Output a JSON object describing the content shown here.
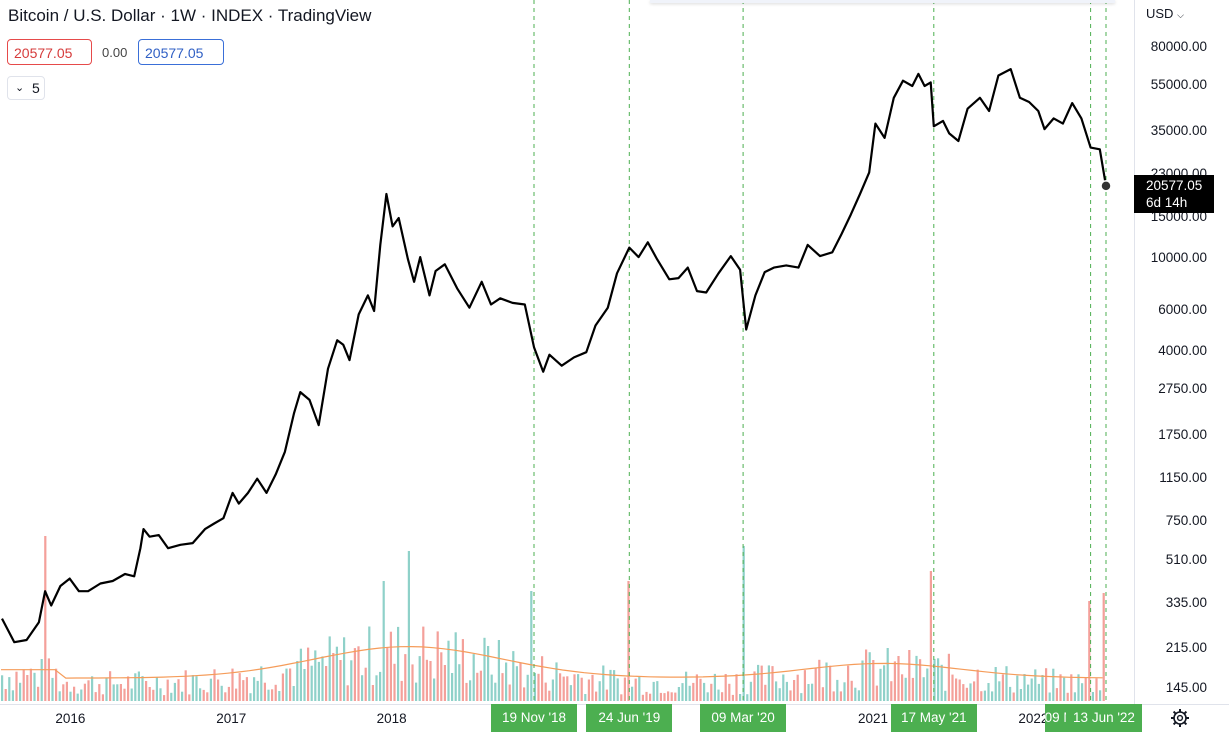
{
  "header": {
    "title": "Bitcoin / U.S. Dollar · 1W · INDEX · TradingView",
    "last_price": "20577.05",
    "change": "0.00",
    "price_blue": "20577.05",
    "indicators_count": "5"
  },
  "price_axis": {
    "currency": "USD",
    "current_price": "20577.05",
    "countdown": "6d 14h"
  },
  "colors": {
    "price_line": "#000000",
    "volume_up": "#8fd1c9",
    "volume_down": "#f4a09a",
    "volume_ma": "#f59c5a",
    "marker_line": "#4caf50",
    "marker_label_bg": "#4caf50"
  },
  "chart_data": {
    "type": "line",
    "title": "Bitcoin / U.S. Dollar · 1W · INDEX · TradingView",
    "y_scale": "log",
    "ylim": [
      140,
      95000
    ],
    "y_ticks": [
      {
        "value": 80000,
        "label": "80000.00"
      },
      {
        "value": 55000,
        "label": "55000.00"
      },
      {
        "value": 35000,
        "label": "35000.00"
      },
      {
        "value": 23000,
        "label": "23000.00"
      },
      {
        "value": 15000,
        "label": "15000.00"
      },
      {
        "value": 10000,
        "label": "10000.00"
      },
      {
        "value": 6000,
        "label": "6000.00"
      },
      {
        "value": 4000,
        "label": "4000.00"
      },
      {
        "value": 2750,
        "label": "2750.00"
      },
      {
        "value": 1750,
        "label": "1750.00"
      },
      {
        "value": 1150,
        "label": "1150.00"
      },
      {
        "value": 750,
        "label": "750.00"
      },
      {
        "value": 510,
        "label": "510.00"
      },
      {
        "value": 335,
        "label": "335.00"
      },
      {
        "value": 215,
        "label": "215.00"
      },
      {
        "value": 145,
        "label": "145.00"
      }
    ],
    "x_ticks": [
      "2016",
      "2017",
      "2018",
      "2021",
      "2022"
    ],
    "x_tick_dates": [
      "2016-01-01",
      "2017-01-01",
      "2018-01-01",
      "2021-01-01",
      "2022-01-01"
    ],
    "xlim": [
      "2015-07-27",
      "2022-06-13"
    ],
    "markers": [
      {
        "date": "2018-11-19",
        "label": "19 Nov '18"
      },
      {
        "date": "2019-06-24",
        "label": "24 Jun '19"
      },
      {
        "date": "2020-03-09",
        "label": "09 Mar '20"
      },
      {
        "date": "2021-05-17",
        "label": "17 May '21"
      },
      {
        "date": "2022-05-09",
        "label": "09 May '22"
      },
      {
        "date": "2022-06-13",
        "label": "13 Jun '22"
      }
    ],
    "series": [
      {
        "points": [
          [
            "2015-07-27",
            290
          ],
          [
            "2015-08-24",
            230
          ],
          [
            "2015-09-21",
            235
          ],
          [
            "2015-10-19",
            280
          ],
          [
            "2015-11-02",
            380
          ],
          [
            "2015-11-16",
            330
          ],
          [
            "2015-12-07",
            400
          ],
          [
            "2015-12-28",
            430
          ],
          [
            "2016-01-18",
            380
          ],
          [
            "2016-02-08",
            380
          ],
          [
            "2016-03-07",
            410
          ],
          [
            "2016-04-04",
            420
          ],
          [
            "2016-05-02",
            450
          ],
          [
            "2016-05-23",
            440
          ],
          [
            "2016-06-06",
            580
          ],
          [
            "2016-06-13",
            700
          ],
          [
            "2016-06-27",
            650
          ],
          [
            "2016-07-18",
            660
          ],
          [
            "2016-08-08",
            580
          ],
          [
            "2016-09-05",
            600
          ],
          [
            "2016-10-03",
            610
          ],
          [
            "2016-10-31",
            700
          ],
          [
            "2016-11-21",
            740
          ],
          [
            "2016-12-12",
            780
          ],
          [
            "2017-01-02",
            1000
          ],
          [
            "2017-01-16",
            900
          ],
          [
            "2017-02-06",
            1000
          ],
          [
            "2017-02-27",
            1150
          ],
          [
            "2017-03-20",
            1000
          ],
          [
            "2017-04-10",
            1200
          ],
          [
            "2017-05-01",
            1500
          ],
          [
            "2017-05-22",
            2200
          ],
          [
            "2017-06-05",
            2700
          ],
          [
            "2017-06-26",
            2500
          ],
          [
            "2017-07-17",
            1950
          ],
          [
            "2017-08-07",
            3400
          ],
          [
            "2017-08-28",
            4500
          ],
          [
            "2017-09-11",
            4300
          ],
          [
            "2017-09-25",
            3700
          ],
          [
            "2017-10-16",
            5800
          ],
          [
            "2017-11-06",
            7000
          ],
          [
            "2017-11-20",
            6000
          ],
          [
            "2017-12-04",
            11500
          ],
          [
            "2017-12-18",
            19000
          ],
          [
            "2018-01-01",
            13800
          ],
          [
            "2018-01-15",
            15000
          ],
          [
            "2018-02-05",
            10000
          ],
          [
            "2018-02-19",
            8000
          ],
          [
            "2018-03-05",
            10200
          ],
          [
            "2018-03-26",
            7000
          ],
          [
            "2018-04-09",
            8900
          ],
          [
            "2018-04-30",
            9500
          ],
          [
            "2018-05-28",
            7500
          ],
          [
            "2018-06-25",
            6200
          ],
          [
            "2018-07-23",
            8000
          ],
          [
            "2018-08-13",
            6400
          ],
          [
            "2018-09-03",
            6800
          ],
          [
            "2018-10-01",
            6500
          ],
          [
            "2018-10-29",
            6400
          ],
          [
            "2018-11-19",
            4200
          ],
          [
            "2018-12-10",
            3300
          ],
          [
            "2018-12-24",
            3900
          ],
          [
            "2019-01-21",
            3500
          ],
          [
            "2019-02-18",
            3800
          ],
          [
            "2019-03-18",
            4000
          ],
          [
            "2019-04-08",
            5200
          ],
          [
            "2019-05-06",
            6200
          ],
          [
            "2019-05-27",
            8700
          ],
          [
            "2019-06-24",
            11200
          ],
          [
            "2019-07-15",
            10200
          ],
          [
            "2019-08-05",
            11800
          ],
          [
            "2019-08-26",
            10000
          ],
          [
            "2019-09-23",
            8200
          ],
          [
            "2019-10-14",
            8300
          ],
          [
            "2019-11-04",
            9200
          ],
          [
            "2019-11-25",
            7300
          ],
          [
            "2019-12-16",
            7200
          ],
          [
            "2020-01-13",
            8700
          ],
          [
            "2020-02-10",
            10300
          ],
          [
            "2020-03-02",
            9000
          ],
          [
            "2020-03-16",
            5000
          ],
          [
            "2020-04-06",
            7000
          ],
          [
            "2020-04-27",
            8800
          ],
          [
            "2020-05-18",
            9200
          ],
          [
            "2020-06-15",
            9400
          ],
          [
            "2020-07-13",
            9200
          ],
          [
            "2020-08-03",
            11500
          ],
          [
            "2020-08-31",
            10300
          ],
          [
            "2020-09-28",
            10700
          ],
          [
            "2020-10-19",
            12800
          ],
          [
            "2020-11-09",
            15500
          ],
          [
            "2020-11-30",
            19000
          ],
          [
            "2020-12-21",
            23500
          ],
          [
            "2021-01-04",
            38000
          ],
          [
            "2021-01-25",
            33000
          ],
          [
            "2021-02-15",
            49000
          ],
          [
            "2021-03-08",
            58000
          ],
          [
            "2021-03-29",
            55000
          ],
          [
            "2021-04-12",
            62000
          ],
          [
            "2021-04-26",
            55000
          ],
          [
            "2021-05-10",
            57000
          ],
          [
            "2021-05-17",
            37000
          ],
          [
            "2021-06-07",
            39000
          ],
          [
            "2021-06-21",
            34500
          ],
          [
            "2021-07-12",
            32000
          ],
          [
            "2021-08-02",
            44000
          ],
          [
            "2021-08-30",
            49000
          ],
          [
            "2021-09-20",
            43000
          ],
          [
            "2021-10-11",
            61000
          ],
          [
            "2021-11-08",
            65000
          ],
          [
            "2021-11-29",
            49000
          ],
          [
            "2021-12-20",
            47000
          ],
          [
            "2022-01-10",
            43000
          ],
          [
            "2022-01-24",
            36000
          ],
          [
            "2022-02-14",
            40000
          ],
          [
            "2022-03-07",
            38000
          ],
          [
            "2022-03-28",
            46500
          ],
          [
            "2022-04-18",
            40000
          ],
          [
            "2022-05-09",
            30000
          ],
          [
            "2022-05-30",
            29500
          ],
          [
            "2022-06-13",
            20577.05
          ]
        ]
      }
    ]
  }
}
